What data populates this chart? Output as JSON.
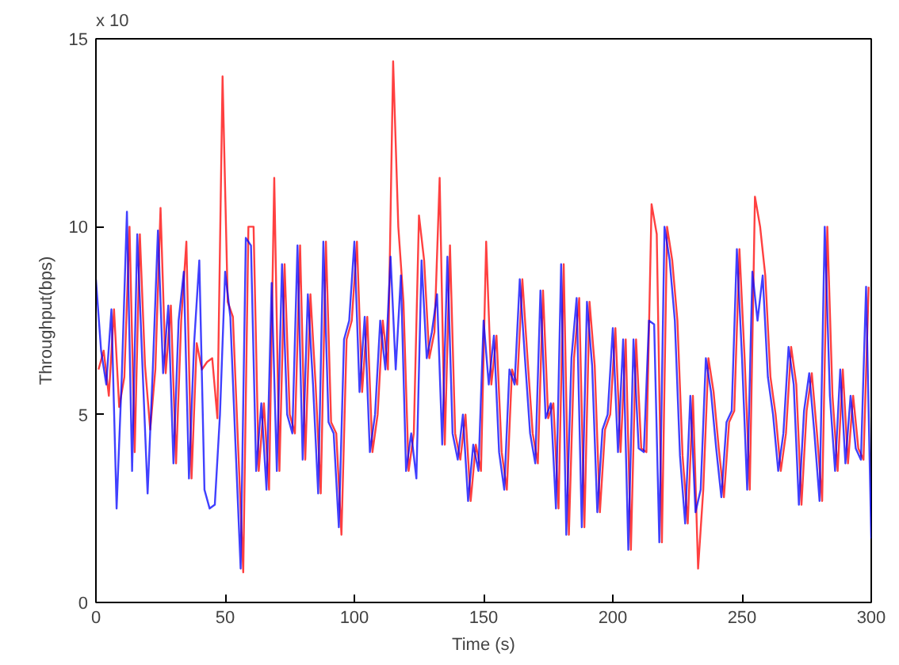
{
  "chart_data": {
    "type": "line",
    "xlabel": "Time (s)",
    "ylabel": "Throughput(bps)",
    "annotations": [
      "x 10"
    ],
    "x": [
      0,
      2,
      4,
      6,
      8,
      10,
      12,
      14,
      16,
      18,
      20,
      22,
      24,
      26,
      28,
      30,
      32,
      34,
      36,
      38,
      40,
      42,
      44,
      46,
      48,
      50,
      52,
      54,
      56,
      58,
      60,
      62,
      64,
      66,
      68,
      70,
      72,
      74,
      76,
      78,
      80,
      82,
      84,
      86,
      88,
      90,
      92,
      94,
      96,
      98,
      100,
      102,
      104,
      106,
      108,
      110,
      112,
      114,
      116,
      118,
      120,
      122,
      124,
      126,
      128,
      130,
      132,
      134,
      136,
      138,
      140,
      142,
      144,
      146,
      148,
      150,
      152,
      154,
      156,
      158,
      160,
      162,
      164,
      166,
      168,
      170,
      172,
      174,
      176,
      178,
      180,
      182,
      184,
      186,
      188,
      190,
      192,
      194,
      196,
      198,
      200,
      202,
      204,
      206,
      208,
      210,
      212,
      214,
      216,
      218,
      220,
      222,
      224,
      226,
      228,
      230,
      232,
      234,
      236,
      238,
      240,
      242,
      244,
      246,
      248,
      250,
      252,
      254,
      256,
      258,
      260,
      262,
      264,
      266,
      268,
      270,
      272,
      274,
      276,
      278,
      280,
      282,
      284,
      286,
      288,
      290,
      292,
      294,
      296,
      298,
      300
    ],
    "series": [
      {
        "color": "#ff0000",
        "x": [
          1,
          3,
          5,
          7,
          9,
          11,
          13,
          15,
          17,
          19,
          21,
          23,
          25,
          27,
          29,
          31,
          33,
          35,
          37,
          39,
          41,
          43,
          45,
          47,
          49,
          51,
          53,
          55,
          57,
          59,
          61,
          63,
          65,
          67,
          69,
          71,
          73,
          75,
          77,
          79,
          81,
          83,
          85,
          87,
          89,
          91,
          93,
          95,
          97,
          99,
          101,
          103,
          105,
          107,
          109,
          111,
          113,
          115,
          117,
          119,
          121,
          123,
          125,
          127,
          129,
          131,
          133,
          135,
          137,
          139,
          141,
          143,
          145,
          147,
          149,
          151,
          153,
          155,
          157,
          159,
          161,
          163,
          165,
          167,
          169,
          171,
          173,
          175,
          177,
          179,
          181,
          183,
          185,
          187,
          189,
          191,
          193,
          195,
          197,
          199,
          201,
          203,
          205,
          207,
          209,
          211,
          213,
          215,
          217,
          219,
          221,
          223,
          225,
          227,
          229,
          231,
          233,
          235,
          237,
          239,
          241,
          243,
          245,
          247,
          249,
          251,
          253,
          255,
          257,
          259,
          261,
          263,
          265,
          267,
          269,
          271,
          273,
          275,
          277,
          279,
          281,
          283,
          285,
          287,
          289,
          291,
          293,
          295,
          297,
          299
        ],
        "values": [
          6.2,
          6.7,
          5.5,
          7.8,
          5.2,
          6.0,
          10.0,
          4.0,
          9.8,
          6.3,
          4.6,
          6.2,
          10.5,
          6.1,
          7.9,
          3.7,
          7.5,
          9.6,
          3.3,
          6.9,
          6.2,
          6.4,
          6.5,
          4.9,
          14.0,
          8.0,
          7.6,
          4.2,
          0.8,
          10.0,
          10.0,
          3.5,
          5.3,
          3.0,
          11.3,
          3.5,
          9.0,
          5.0,
          4.5,
          9.5,
          3.8,
          8.2,
          5.8,
          2.9,
          9.6,
          4.8,
          4.5,
          1.8,
          7.0,
          7.5,
          9.6,
          5.6,
          7.6,
          4.0,
          5.0,
          7.5,
          6.2,
          14.4,
          10.0,
          8.0,
          3.5,
          4.5,
          10.3,
          9.1,
          6.5,
          7.2,
          11.3,
          4.2,
          9.5,
          4.5,
          3.8,
          5.0,
          2.7,
          4.2,
          3.5,
          9.6,
          5.8,
          7.1,
          4.0,
          3.0,
          6.2,
          5.8,
          8.6,
          6.5,
          4.5,
          3.7,
          8.3,
          4.9,
          5.3,
          2.5,
          9.0,
          1.8,
          6.5,
          8.1,
          2.0,
          8.0,
          6.3,
          2.4,
          4.6,
          5.0,
          7.3,
          4.0,
          7.0,
          1.4,
          7.0,
          4.1,
          4.0,
          10.6,
          9.8,
          1.6,
          10.0,
          9.1,
          7.5,
          3.9,
          2.1,
          5.5,
          0.9,
          3.0,
          6.5,
          5.6,
          4.1,
          2.8,
          4.8,
          5.1,
          9.4,
          6.5,
          3.0,
          10.8,
          10.0,
          8.7,
          6.0,
          5.0,
          3.5,
          4.5,
          6.8,
          5.8,
          2.6,
          5.1,
          6.1,
          4.5,
          2.7,
          10.0,
          5.5,
          3.5,
          6.2,
          3.7,
          5.5,
          4.1,
          3.8,
          8.4
        ]
      },
      {
        "color": "#0000ff",
        "values": [
          8.6,
          6.7,
          5.8,
          7.8,
          2.5,
          6.0,
          10.4,
          3.5,
          9.8,
          6.3,
          2.9,
          6.2,
          9.9,
          6.1,
          7.9,
          3.7,
          7.5,
          8.8,
          3.3,
          6.9,
          9.1,
          3.0,
          2.5,
          2.6,
          5.0,
          8.8,
          7.6,
          4.2,
          0.9,
          9.7,
          9.5,
          3.5,
          5.3,
          3.0,
          8.5,
          3.5,
          9.0,
          5.0,
          4.5,
          9.5,
          3.8,
          8.2,
          5.8,
          2.9,
          9.6,
          4.8,
          4.5,
          2.0,
          7.0,
          7.5,
          9.6,
          5.6,
          7.6,
          4.0,
          5.0,
          7.5,
          6.2,
          9.2,
          6.2,
          8.7,
          3.5,
          4.5,
          3.3,
          9.1,
          6.5,
          7.2,
          8.2,
          4.2,
          9.2,
          4.5,
          3.8,
          5.0,
          2.7,
          4.2,
          3.5,
          7.5,
          5.8,
          7.1,
          4.0,
          3.0,
          6.2,
          5.8,
          8.6,
          6.5,
          4.5,
          3.7,
          8.3,
          4.9,
          5.3,
          2.5,
          9.0,
          1.8,
          6.5,
          8.1,
          2.0,
          8.0,
          6.3,
          2.4,
          4.6,
          5.0,
          7.3,
          4.0,
          7.0,
          1.4,
          7.0,
          4.1,
          4.0,
          7.5,
          7.4,
          1.6,
          10.0,
          9.1,
          7.5,
          3.9,
          2.1,
          5.5,
          2.4,
          3.0,
          6.5,
          5.6,
          4.1,
          2.8,
          4.8,
          5.1,
          9.4,
          6.5,
          3.0,
          8.8,
          7.5,
          8.7,
          6.0,
          5.0,
          3.5,
          4.5,
          6.8,
          5.8,
          2.6,
          5.1,
          6.1,
          4.5,
          2.7,
          10.0,
          5.5,
          3.5,
          6.2,
          3.7,
          5.5,
          4.1,
          3.8,
          8.4,
          1.7
        ]
      }
    ],
    "xlim": [
      0,
      300
    ],
    "ylim": [
      0,
      15
    ],
    "xticks": [
      0,
      50,
      100,
      150,
      200,
      250,
      300
    ],
    "yticks": [
      0,
      5,
      10,
      15
    ],
    "grid": false,
    "line_style": "solid"
  }
}
